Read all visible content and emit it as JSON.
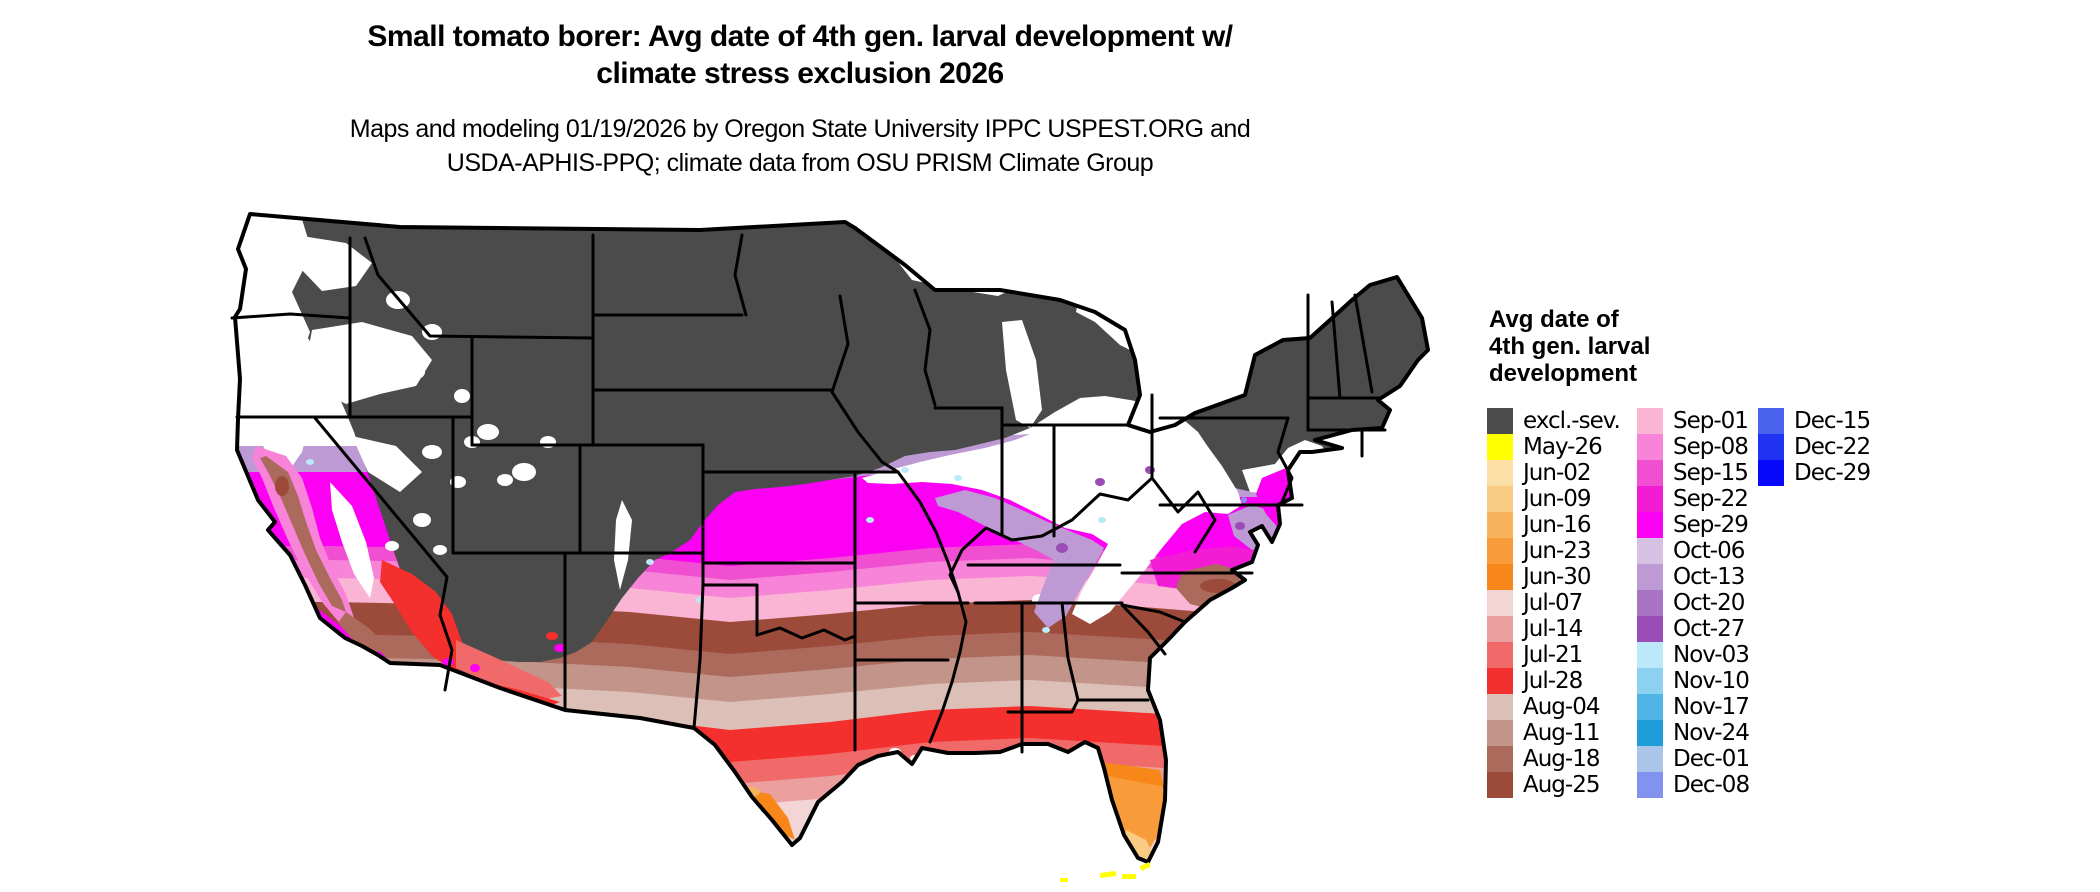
{
  "title": {
    "line1": "Small tomato borer: Avg date of 4th gen. larval development w/",
    "line2": "climate stress exclusion 2026"
  },
  "subtitle": {
    "line1": "Maps and modeling 01/19/2026 by Oregon State University IPPC USPEST.ORG and",
    "line2": "USDA-APHIS-PPQ; climate data from OSU PRISM Climate Group"
  },
  "legend": {
    "title_line1": "Avg date of",
    "title_line2": "4th gen. larval",
    "title_line3": "development",
    "columns": [
      {
        "entries": [
          {
            "label": "excl.-sev.",
            "color": "#4B4B4B"
          },
          {
            "label": "May-26",
            "color": "#FFFF00"
          },
          {
            "label": "Jun-02",
            "color": "#FBDFA4"
          },
          {
            "label": "Jun-09",
            "color": "#FACC83"
          },
          {
            "label": "Jun-16",
            "color": "#F9B35C"
          },
          {
            "label": "Jun-23",
            "color": "#F89B3A"
          },
          {
            "label": "Jun-30",
            "color": "#F68718"
          },
          {
            "label": "Jul-07",
            "color": "#F3D5D5"
          },
          {
            "label": "Jul-14",
            "color": "#EC9F9F"
          },
          {
            "label": "Jul-21",
            "color": "#F16A6A"
          },
          {
            "label": "Jul-28",
            "color": "#F3302D"
          },
          {
            "label": "Aug-04",
            "color": "#DCC0B8"
          },
          {
            "label": "Aug-11",
            "color": "#C2948A"
          },
          {
            "label": "Aug-18",
            "color": "#AB6A5C"
          },
          {
            "label": "Aug-25",
            "color": "#9C4B3A"
          }
        ]
      },
      {
        "entries": [
          {
            "label": "Sep-01",
            "color": "#FBB5D4"
          },
          {
            "label": "Sep-08",
            "color": "#F784D8"
          },
          {
            "label": "Sep-15",
            "color": "#F14FD2"
          },
          {
            "label": "Sep-22",
            "color": "#F21CD4"
          },
          {
            "label": "Sep-29",
            "color": "#FB00F2"
          },
          {
            "label": "Oct-06",
            "color": "#D5C2E2"
          },
          {
            "label": "Oct-13",
            "color": "#BD9AD4"
          },
          {
            "label": "Oct-20",
            "color": "#A974C4"
          },
          {
            "label": "Oct-27",
            "color": "#9A4DB6"
          },
          {
            "label": "Nov-03",
            "color": "#BCE9FA"
          },
          {
            "label": "Nov-10",
            "color": "#8CD1EF"
          },
          {
            "label": "Nov-17",
            "color": "#50B5E4"
          },
          {
            "label": "Nov-24",
            "color": "#1D9ED9"
          },
          {
            "label": "Dec-01",
            "color": "#AAC5E8"
          },
          {
            "label": "Dec-08",
            "color": "#8193EE"
          }
        ]
      },
      {
        "entries": [
          {
            "label": "Dec-15",
            "color": "#4A63EE"
          },
          {
            "label": "Dec-22",
            "color": "#2032F2"
          },
          {
            "label": "Dec-29",
            "color": "#0808FA"
          }
        ]
      }
    ]
  },
  "map": {
    "region_label": "Contiguous United States",
    "state_border_color": "#000000",
    "background_color": "#FFFFFF"
  }
}
